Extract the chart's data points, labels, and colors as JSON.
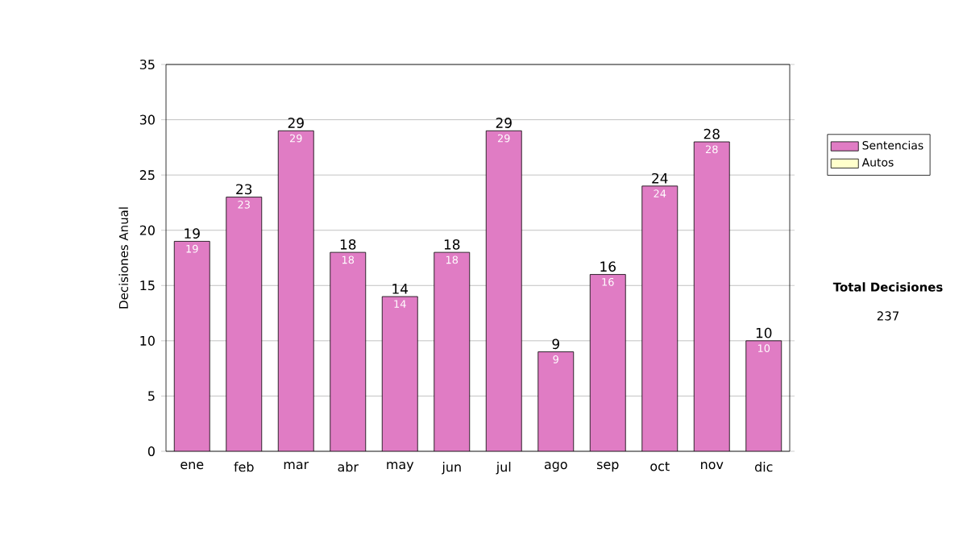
{
  "chart_data": {
    "type": "bar",
    "stacked": true,
    "ylabel": "Decisiones Anual",
    "categories": [
      "ene",
      "feb",
      "mar",
      "abr",
      "may",
      "jun",
      "jul",
      "ago",
      "sep",
      "oct",
      "nov",
      "dic"
    ],
    "series": [
      {
        "name": "Sentencias",
        "color": "#e07cc4",
        "values": [
          19,
          23,
          29,
          18,
          14,
          18,
          29,
          9,
          16,
          24,
          28,
          10
        ],
        "value_labels": [
          "19",
          "23",
          "29",
          "18",
          "14",
          "18",
          "29",
          "9",
          "16",
          "24",
          "28",
          "10"
        ]
      },
      {
        "name": "Autos",
        "color": "#ffffcc",
        "values": [
          0,
          0,
          0,
          0,
          0,
          0,
          0,
          0,
          0,
          0,
          0,
          0
        ]
      }
    ],
    "totals": [
      "19",
      "23",
      "29",
      "18",
      "14",
      "18",
      "29",
      "9",
      "16",
      "24",
      "28",
      "10"
    ],
    "ylim": [
      0,
      35
    ],
    "yticks": [
      0,
      5,
      10,
      15,
      20,
      25,
      30,
      35
    ],
    "grid": "y",
    "legend": "right",
    "annotations": [
      "Total Decisiones",
      "237"
    ]
  }
}
